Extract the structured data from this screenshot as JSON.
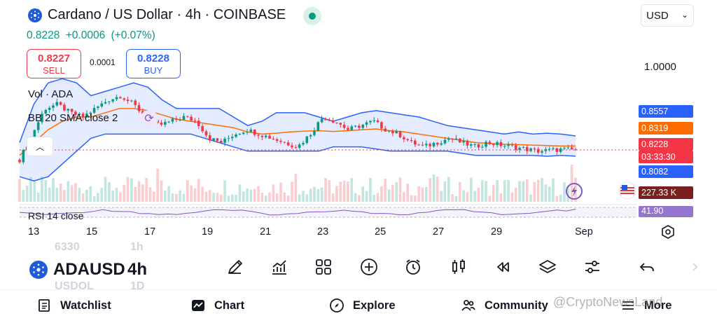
{
  "header": {
    "title": "Cardano / US Dollar · 4h · COINBASE",
    "currency": "USD",
    "last_price": "0.8228",
    "change": "+0.0006",
    "change_pct": "(+0.07%)"
  },
  "order_panel": {
    "sell_price": "0.8227",
    "sell_label": "SELL",
    "spread": "0.0001",
    "buy_price": "0.8228",
    "buy_label": "BUY"
  },
  "legends": {
    "volume": "Vol · ADA",
    "bollinger": "BB 20 SMA close 2",
    "rsi": "RSI 14 close"
  },
  "price_axis": {
    "scale_label": "1.0000",
    "bb_upper": "0.8557",
    "bb_basis": "0.8319",
    "last_price": "0.8228",
    "countdown": "03:33:30",
    "bb_lower": "0.8082",
    "volume": "227.33 K",
    "rsi": "41.90"
  },
  "colors": {
    "up": "#089981",
    "down": "#f23645",
    "bb_band": "#2962ff",
    "bb_basis": "#ff6d00",
    "volume_badge": "#7a1e1e",
    "rsi": "#7e57c2"
  },
  "time_axis": [
    "13",
    "15",
    "17",
    "19",
    "21",
    "23",
    "25",
    "27",
    "29",
    "Sep"
  ],
  "toolbar": {
    "symbol": "ADAUSD",
    "interval": "4h",
    "ghost_above_symbol": "6330",
    "ghost_above_interval": "1h",
    "ghost_below_symbol": "USDOL",
    "ghost_below_interval": "1D",
    "tools": [
      "draw-icon",
      "indicators-icon",
      "layout-icon",
      "add-icon",
      "alert-icon",
      "chart-type-icon",
      "replay-icon",
      "layers-icon",
      "settings-sliders-icon",
      "undo-icon"
    ]
  },
  "bottom_nav": {
    "watchlist": "Watchlist",
    "chart": "Chart",
    "explore": "Explore",
    "community": "Community",
    "more": "More"
  },
  "watermark": "@CryptoNewsLand",
  "chart_data": {
    "type": "candlestick",
    "title": "Cardano / US Dollar · 4h · COINBASE",
    "x_labels": [
      "13",
      "15",
      "17",
      "19",
      "21",
      "23",
      "25",
      "27",
      "29",
      "Sep"
    ],
    "price_range": [
      0.78,
      1.02
    ],
    "close_path": [
      0.8,
      0.86,
      0.92,
      0.93,
      0.91,
      0.9,
      0.92,
      0.94,
      0.95,
      0.93,
      0.9,
      0.88,
      0.89,
      0.9,
      0.89,
      0.85,
      0.84,
      0.86,
      0.87,
      0.86,
      0.85,
      0.84,
      0.83,
      0.86,
      0.9,
      0.89,
      0.87,
      0.88,
      0.89,
      0.87,
      0.86,
      0.84,
      0.83,
      0.84,
      0.85,
      0.84,
      0.83,
      0.84,
      0.835,
      0.83,
      0.825,
      0.82,
      0.822,
      0.824,
      0.8228
    ],
    "bb_upper": [
      0.84,
      0.93,
      0.98,
      0.99,
      0.98,
      0.95,
      0.96,
      0.97,
      0.98,
      0.97,
      0.94,
      0.92,
      0.92,
      0.92,
      0.92,
      0.9,
      0.88,
      0.89,
      0.91,
      0.91,
      0.91,
      0.9,
      0.89,
      0.9,
      0.91,
      0.915,
      0.91,
      0.905,
      0.9,
      0.89,
      0.88,
      0.875,
      0.87,
      0.865,
      0.86,
      0.865,
      0.86,
      0.862,
      0.86,
      0.8557
    ],
    "bb_basis": [
      0.81,
      0.84,
      0.87,
      0.89,
      0.9,
      0.9,
      0.91,
      0.92,
      0.92,
      0.915,
      0.905,
      0.895,
      0.89,
      0.885,
      0.88,
      0.875,
      0.865,
      0.86,
      0.862,
      0.865,
      0.867,
      0.868,
      0.866,
      0.868,
      0.87,
      0.872,
      0.868,
      0.865,
      0.86,
      0.855,
      0.85,
      0.845,
      0.84,
      0.838,
      0.836,
      0.835,
      0.834,
      0.833,
      0.832,
      0.8319
    ],
    "bb_lower": [
      0.76,
      0.75,
      0.76,
      0.79,
      0.82,
      0.85,
      0.86,
      0.86,
      0.86,
      0.86,
      0.86,
      0.86,
      0.86,
      0.85,
      0.84,
      0.83,
      0.82,
      0.82,
      0.82,
      0.82,
      0.82,
      0.82,
      0.83,
      0.83,
      0.83,
      0.825,
      0.82,
      0.82,
      0.82,
      0.82,
      0.82,
      0.815,
      0.81,
      0.81,
      0.81,
      0.81,
      0.81,
      0.808,
      0.81,
      0.8082
    ],
    "last_price": 0.8228,
    "bb_upper_last": 0.8557,
    "bb_basis_last": 0.8319,
    "bb_lower_last": 0.8082,
    "volume_last": "227.33 K",
    "rsi_last": 41.9
  }
}
